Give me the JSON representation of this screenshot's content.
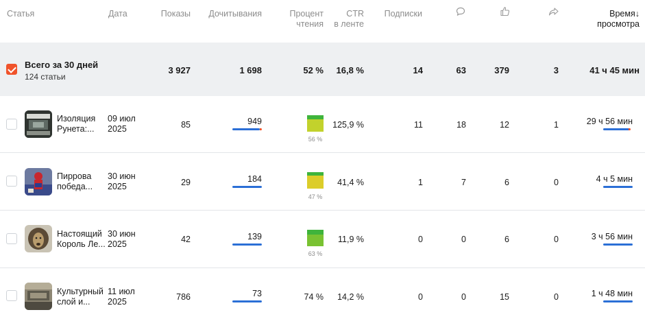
{
  "header": {
    "article": "Статья",
    "date": "Дата",
    "views": "Показы",
    "reads": "Дочитывания",
    "read_pct_1": "Процент",
    "read_pct_2": "чтения",
    "ctr_1": "CTR",
    "ctr_2": "в ленте",
    "subs": "Подписки",
    "comments_icon": "comment-icon",
    "likes_icon": "like-icon",
    "shares_icon": "share-icon",
    "time_1": "Время",
    "time_2": "просмотра",
    "sort_arrow": "↓"
  },
  "summary": {
    "title": "Всего за 30 дней",
    "subtitle": "124 статьи",
    "views": "3 927",
    "reads": "1 698",
    "read_pct": "52 %",
    "ctr": "16,8 %",
    "subs": "14",
    "comments": "63",
    "likes": "379",
    "shares": "3",
    "time": "41 ч 45 мин"
  },
  "rows": [
    {
      "title_1": "Изоляция",
      "title_2": "Рунета:...",
      "date_1": "09 июл",
      "date_2": "2025",
      "views": "85",
      "reads": "949",
      "read_pct": "56 %",
      "read_color": "#b5cf2b",
      "read_value": 0.56,
      "ctr": "125,9 %",
      "subs": "11",
      "comments": "18",
      "likes": "12",
      "shares": "1",
      "time": "29 ч 56 мин"
    },
    {
      "title_1": "Пиррова",
      "title_2": "победа...",
      "date_1": "30 июн",
      "date_2": "2025",
      "views": "29",
      "reads": "184",
      "read_pct": "47 %",
      "read_color": "#d8d02a",
      "read_value": 0.47,
      "ctr": "41,4 %",
      "subs": "1",
      "comments": "7",
      "likes": "6",
      "shares": "0",
      "time": "4 ч 5 мин"
    },
    {
      "title_1": "Настоящий",
      "title_2": "Король Ле...",
      "date_1": "30 июн",
      "date_2": "2025",
      "views": "42",
      "reads": "139",
      "read_pct": "63 %",
      "read_color": "#7ac231",
      "read_value": 0.63,
      "ctr": "11,9 %",
      "subs": "0",
      "comments": "0",
      "likes": "6",
      "shares": "0",
      "time": "3 ч 56 мин"
    },
    {
      "title_1": "Культурный",
      "title_2": "слой и...",
      "date_1": "11 июл",
      "date_2": "2025",
      "views": "786",
      "reads": "73",
      "read_pct": "74 %",
      "ctr": "14,2 %",
      "subs": "0",
      "comments": "0",
      "likes": "15",
      "shares": "0",
      "time": "1 ч 48 мин"
    }
  ],
  "colors": {
    "accent": "#f0532b",
    "bar": "#2b6fd6",
    "summary_bg": "#eef0f2"
  }
}
